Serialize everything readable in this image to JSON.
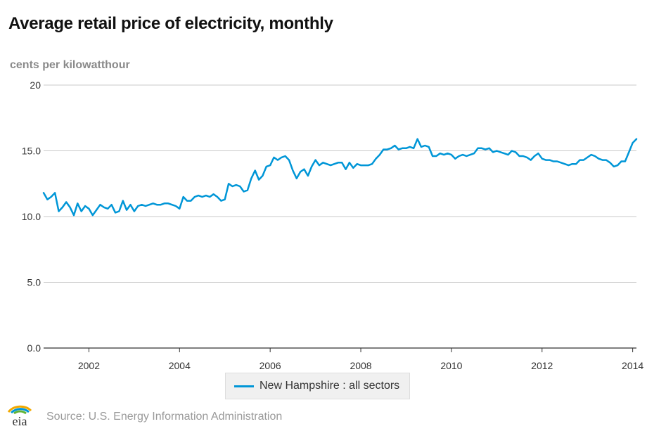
{
  "title": "Average retail price of electricity, monthly",
  "unit_label": "cents per kilowatthour",
  "legend_label": "New Hampshire : all sectors",
  "source_text": "Source: U.S. Energy Information Administration",
  "logo_text": "eia",
  "colors": {
    "series": "#0096d7",
    "grid": "#c8c8c8",
    "axis_text": "#333333"
  },
  "chart_data": {
    "type": "line",
    "title": "Average retail price of electricity, monthly",
    "ylabel": "cents per kilowatthour",
    "ylim": [
      0,
      20
    ],
    "yticks": [
      0,
      5,
      10,
      15,
      20
    ],
    "ytick_labels": [
      "0.0",
      "5.0",
      "10.0",
      "15.0",
      "20"
    ],
    "xlim": [
      "2001-01",
      "2014-02"
    ],
    "xticks": [
      2002,
      2004,
      2006,
      2008,
      2010,
      2012,
      2014
    ],
    "xtick_labels": [
      "2002",
      "2004",
      "2006",
      "2008",
      "2010",
      "2012",
      "2014"
    ],
    "grid": true,
    "legend_position": "bottom",
    "series": [
      {
        "name": "New Hampshire : all sectors",
        "x": [
          "2001-01",
          "2001-02",
          "2001-03",
          "2001-04",
          "2001-05",
          "2001-06",
          "2001-07",
          "2001-08",
          "2001-09",
          "2001-10",
          "2001-11",
          "2001-12",
          "2002-01",
          "2002-02",
          "2002-03",
          "2002-04",
          "2002-05",
          "2002-06",
          "2002-07",
          "2002-08",
          "2002-09",
          "2002-10",
          "2002-11",
          "2002-12",
          "2003-01",
          "2003-02",
          "2003-03",
          "2003-04",
          "2003-05",
          "2003-06",
          "2003-07",
          "2003-08",
          "2003-09",
          "2003-10",
          "2003-11",
          "2003-12",
          "2004-01",
          "2004-02",
          "2004-03",
          "2004-04",
          "2004-05",
          "2004-06",
          "2004-07",
          "2004-08",
          "2004-09",
          "2004-10",
          "2004-11",
          "2004-12",
          "2005-01",
          "2005-02",
          "2005-03",
          "2005-04",
          "2005-05",
          "2005-06",
          "2005-07",
          "2005-08",
          "2005-09",
          "2005-10",
          "2005-11",
          "2005-12",
          "2006-01",
          "2006-02",
          "2006-03",
          "2006-04",
          "2006-05",
          "2006-06",
          "2006-07",
          "2006-08",
          "2006-09",
          "2006-10",
          "2006-11",
          "2006-12",
          "2007-01",
          "2007-02",
          "2007-03",
          "2007-04",
          "2007-05",
          "2007-06",
          "2007-07",
          "2007-08",
          "2007-09",
          "2007-10",
          "2007-11",
          "2007-12",
          "2008-01",
          "2008-02",
          "2008-03",
          "2008-04",
          "2008-05",
          "2008-06",
          "2008-07",
          "2008-08",
          "2008-09",
          "2008-10",
          "2008-11",
          "2008-12",
          "2009-01",
          "2009-02",
          "2009-03",
          "2009-04",
          "2009-05",
          "2009-06",
          "2009-07",
          "2009-08",
          "2009-09",
          "2009-10",
          "2009-11",
          "2009-12",
          "2010-01",
          "2010-02",
          "2010-03",
          "2010-04",
          "2010-05",
          "2010-06",
          "2010-07",
          "2010-08",
          "2010-09",
          "2010-10",
          "2010-11",
          "2010-12",
          "2011-01",
          "2011-02",
          "2011-03",
          "2011-04",
          "2011-05",
          "2011-06",
          "2011-07",
          "2011-08",
          "2011-09",
          "2011-10",
          "2011-11",
          "2011-12",
          "2012-01",
          "2012-02",
          "2012-03",
          "2012-04",
          "2012-05",
          "2012-06",
          "2012-07",
          "2012-08",
          "2012-09",
          "2012-10",
          "2012-11",
          "2012-12",
          "2013-01",
          "2013-02",
          "2013-03",
          "2013-04",
          "2013-05",
          "2013-06",
          "2013-07",
          "2013-08",
          "2013-09",
          "2013-10",
          "2013-11",
          "2013-12",
          "2014-01",
          "2014-02"
        ],
        "values": [
          11.8,
          11.3,
          11.5,
          11.8,
          10.4,
          10.7,
          11.1,
          10.7,
          10.1,
          11.0,
          10.4,
          10.8,
          10.6,
          10.1,
          10.5,
          10.9,
          10.7,
          10.6,
          10.9,
          10.3,
          10.4,
          11.2,
          10.5,
          10.9,
          10.4,
          10.8,
          10.9,
          10.8,
          10.9,
          11.0,
          10.9,
          10.9,
          11.0,
          11.0,
          10.9,
          10.8,
          10.6,
          11.5,
          11.2,
          11.2,
          11.5,
          11.6,
          11.5,
          11.6,
          11.5,
          11.7,
          11.5,
          11.2,
          11.3,
          12.5,
          12.3,
          12.4,
          12.3,
          11.9,
          12.0,
          12.9,
          13.5,
          12.8,
          13.1,
          13.8,
          13.9,
          14.5,
          14.3,
          14.5,
          14.6,
          14.3,
          13.5,
          12.9,
          13.4,
          13.6,
          13.1,
          13.8,
          14.3,
          13.9,
          14.1,
          14.0,
          13.9,
          14.0,
          14.1,
          14.1,
          13.6,
          14.1,
          13.7,
          14.0,
          13.9,
          13.9,
          13.9,
          14.0,
          14.4,
          14.7,
          15.1,
          15.1,
          15.2,
          15.4,
          15.1,
          15.2,
          15.2,
          15.3,
          15.2,
          15.9,
          15.3,
          15.4,
          15.3,
          14.6,
          14.6,
          14.8,
          14.7,
          14.8,
          14.7,
          14.4,
          14.6,
          14.7,
          14.6,
          14.7,
          14.8,
          15.2,
          15.2,
          15.1,
          15.2,
          14.9,
          15.0,
          14.9,
          14.8,
          14.7,
          15.0,
          14.9,
          14.6,
          14.6,
          14.5,
          14.3,
          14.6,
          14.8,
          14.4,
          14.3,
          14.3,
          14.2,
          14.2,
          14.1,
          14.0,
          13.9,
          14.0,
          14.0,
          14.3,
          14.3,
          14.5,
          14.7,
          14.6,
          14.4,
          14.3,
          14.3,
          14.1,
          13.8,
          13.9,
          14.2,
          14.2,
          14.9,
          15.6,
          15.9
        ]
      }
    ]
  }
}
